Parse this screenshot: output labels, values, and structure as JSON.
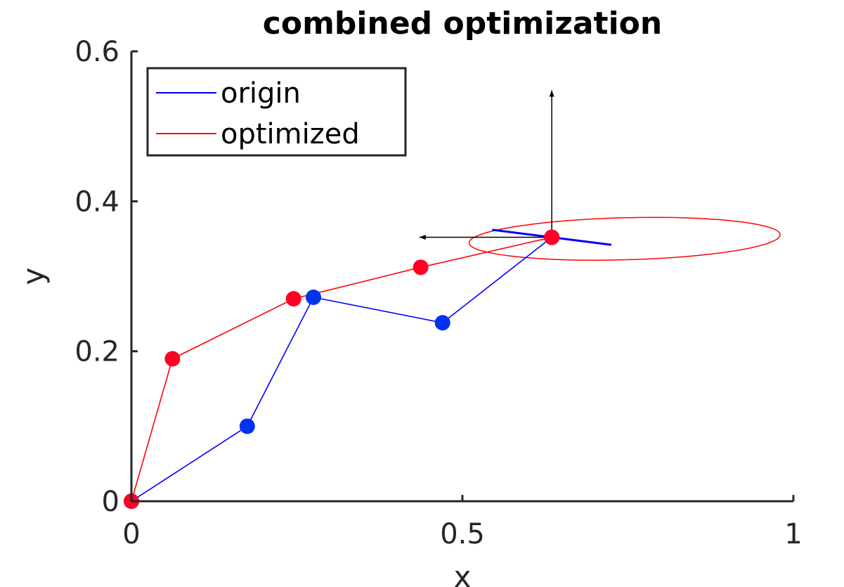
{
  "chart_data": {
    "type": "line",
    "title": "combined optimization",
    "xlabel": "x",
    "ylabel": "y",
    "xlim": [
      0,
      1
    ],
    "ylim": [
      0,
      0.6
    ],
    "xticks": [
      0,
      0.5,
      1
    ],
    "xtick_labels": [
      "0",
      "0.5",
      "1"
    ],
    "yticks": [
      0,
      0.2,
      0.4,
      0.6
    ],
    "ytick_labels": [
      "0",
      "0.2",
      "0.4",
      "0.6"
    ],
    "grid": false,
    "legend_position": "top-left",
    "series": [
      {
        "name": "origin",
        "color": "#0000ff",
        "marker_color": "#0033ee",
        "x": [
          0,
          0.175,
          0.275,
          0.47,
          0.635
        ],
        "y": [
          0,
          0.1,
          0.272,
          0.238,
          0.352
        ]
      },
      {
        "name": "optimized",
        "color": "#ff0000",
        "marker_color": "#ff0022",
        "x": [
          0,
          0.062,
          0.245,
          0.437,
          0.635
        ],
        "y": [
          0,
          0.19,
          0.27,
          0.312,
          0.352
        ]
      }
    ],
    "annotations": {
      "ellipse": {
        "color": "#ff0000",
        "cx": 0.745,
        "cy": 0.35,
        "rx": 0.235,
        "ry": 0.028,
        "angle_deg": -1.5
      },
      "blue_segment": {
        "color": "#0000ff",
        "x1": 0.545,
        "y1": 0.362,
        "x2": 0.725,
        "y2": 0.342
      },
      "arrows": [
        {
          "color": "#000000",
          "x1": 0.635,
          "y1": 0.352,
          "x2": 0.635,
          "y2": 0.548
        },
        {
          "color": "#000000",
          "x1": 0.635,
          "y1": 0.352,
          "x2": 0.435,
          "y2": 0.352
        }
      ]
    }
  }
}
